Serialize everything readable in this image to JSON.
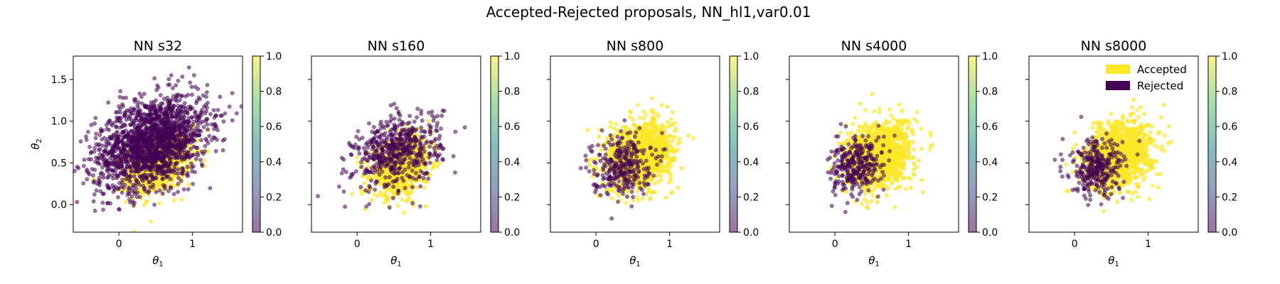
{
  "figure": {
    "suptitle": "Accepted-Rejected proposals, NN_hl1,var0.01"
  },
  "colors": {
    "accepted": "#fde725",
    "rejected": "#440154",
    "colormap": [
      "#440154",
      "#3b528b",
      "#21918c",
      "#5ec962",
      "#fde725"
    ]
  },
  "chart_data": [
    {
      "type": "scatter",
      "title": "NN s32",
      "xlabel": "θ",
      "xlabel_sub": "1",
      "ylabel": "θ",
      "ylabel_sub": "2",
      "xlim": [
        -0.62,
        1.68
      ],
      "ylim": [
        -0.33,
        1.78
      ],
      "xticks": [
        0,
        1
      ],
      "yticks": [
        0.0,
        0.5,
        1.0,
        1.5
      ],
      "ytick_labels_visible": true,
      "accepted": {
        "count": 700,
        "center": [
          0.55,
          0.48
        ],
        "spread": [
          0.22,
          0.18
        ],
        "corr": 0.35
      },
      "rejected": {
        "count": 1800,
        "center": [
          0.45,
          0.75
        ],
        "spread": [
          0.38,
          0.28
        ],
        "corr": 0.35
      },
      "colorbar": {
        "ticks": [
          "0.0",
          "0.2",
          "0.4",
          "0.6",
          "0.8",
          "1.0"
        ]
      }
    },
    {
      "type": "scatter",
      "title": "NN s160",
      "xlabel": "θ",
      "xlabel_sub": "1",
      "ylabel": "",
      "ylabel_sub": "",
      "xlim": [
        -0.62,
        1.68
      ],
      "ylim": [
        -0.33,
        1.78
      ],
      "xticks": [
        0,
        1
      ],
      "yticks": [
        0.0,
        0.5,
        1.0,
        1.5
      ],
      "ytick_labels_visible": false,
      "accepted": {
        "count": 800,
        "center": [
          0.6,
          0.45
        ],
        "spread": [
          0.2,
          0.17
        ],
        "corr": 0.3
      },
      "rejected": {
        "count": 550,
        "center": [
          0.55,
          0.65
        ],
        "spread": [
          0.3,
          0.22
        ],
        "corr": 0.3
      },
      "colorbar": {
        "ticks": [
          "0.0",
          "0.2",
          "0.4",
          "0.6",
          "0.8",
          "1.0"
        ]
      }
    },
    {
      "type": "scatter",
      "title": "NN s800",
      "xlabel": "θ",
      "xlabel_sub": "1",
      "ylabel": "",
      "ylabel_sub": "",
      "xlim": [
        -0.62,
        1.68
      ],
      "ylim": [
        -0.33,
        1.78
      ],
      "xticks": [
        0,
        1
      ],
      "yticks": [
        0.0,
        0.5,
        1.0,
        1.5
      ],
      "ytick_labels_visible": false,
      "accepted": {
        "count": 1200,
        "center": [
          0.6,
          0.6
        ],
        "spread": [
          0.22,
          0.2
        ],
        "corr": 0.2
      },
      "rejected": {
        "count": 300,
        "center": [
          0.35,
          0.48
        ],
        "spread": [
          0.2,
          0.18
        ],
        "corr": 0.1
      },
      "colorbar": {
        "ticks": [
          "0.0",
          "0.2",
          "0.4",
          "0.6",
          "0.8",
          "1.0"
        ]
      }
    },
    {
      "type": "scatter",
      "title": "NN s4000",
      "xlabel": "θ",
      "xlabel_sub": "1",
      "ylabel": "",
      "ylabel_sub": "",
      "xlim": [
        -0.62,
        1.68
      ],
      "ylim": [
        -0.33,
        1.78
      ],
      "xticks": [
        0,
        1
      ],
      "yticks": [
        0.0,
        0.5,
        1.0,
        1.5
      ],
      "ytick_labels_visible": false,
      "accepted": {
        "count": 1200,
        "center": [
          0.6,
          0.6
        ],
        "spread": [
          0.22,
          0.2
        ],
        "corr": 0.2
      },
      "rejected": {
        "count": 300,
        "center": [
          0.3,
          0.45
        ],
        "spread": [
          0.18,
          0.17
        ],
        "corr": 0.1
      },
      "colorbar": {
        "ticks": [
          "0.0",
          "0.2",
          "0.4",
          "0.6",
          "0.8",
          "1.0"
        ]
      }
    },
    {
      "type": "scatter",
      "title": "NN s8000",
      "xlabel": "θ",
      "xlabel_sub": "1",
      "ylabel": "",
      "ylabel_sub": "",
      "xlim": [
        -0.62,
        1.68
      ],
      "ylim": [
        -0.33,
        1.78
      ],
      "xticks": [
        0,
        1
      ],
      "yticks": [
        0.0,
        0.5,
        1.0,
        1.5
      ],
      "ytick_labels_visible": false,
      "accepted": {
        "count": 1200,
        "center": [
          0.6,
          0.6
        ],
        "spread": [
          0.22,
          0.2
        ],
        "corr": 0.2
      },
      "rejected": {
        "count": 300,
        "center": [
          0.3,
          0.42
        ],
        "spread": [
          0.18,
          0.17
        ],
        "corr": 0.1
      },
      "colorbar": {
        "ticks": [
          "0.0",
          "0.2",
          "0.4",
          "0.6",
          "0.8",
          "1.0"
        ]
      },
      "legend": {
        "placement": "top-right",
        "entries": [
          {
            "label": "Accepted",
            "color": "#fde725"
          },
          {
            "label": "Rejected",
            "color": "#440154"
          }
        ]
      }
    }
  ]
}
